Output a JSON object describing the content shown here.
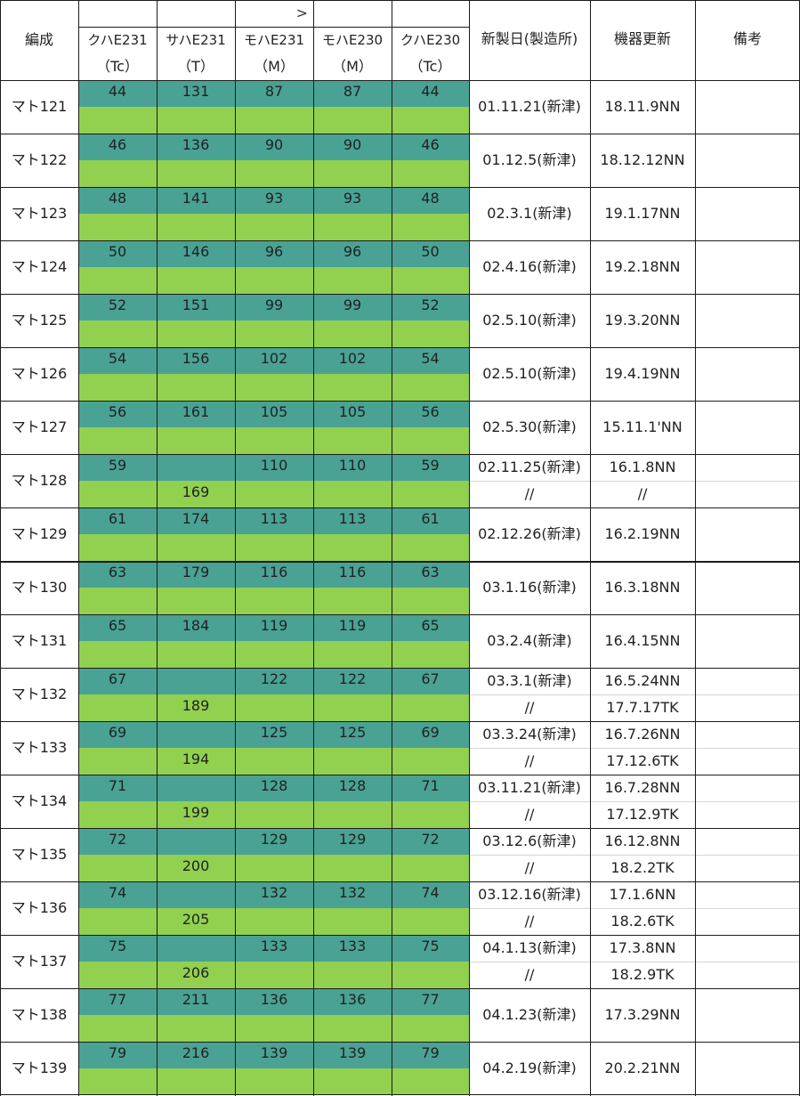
{
  "header": {
    "formation": "編成",
    "remarks": "備考",
    "arrow": ">",
    "build_date": "新製日(製造所)",
    "renewal": "機器更新",
    "cars": [
      {
        "name": "クハE231",
        "type": "（Tc）"
      },
      {
        "name": "サハE231",
        "type": "（T）"
      },
      {
        "name": "モハE231",
        "type": "（M）"
      },
      {
        "name": "モハE230",
        "type": "（M）"
      },
      {
        "name": "クハE230",
        "type": "（Tc）"
      }
    ]
  },
  "rows": [
    {
      "formation": "マト121",
      "cars": [
        "44",
        "131",
        "87",
        "87",
        "44"
      ],
      "build_date": "01.11.21(新津)",
      "renewal": "18.11.9NN"
    },
    {
      "formation": "マト122",
      "cars": [
        "46",
        "136",
        "90",
        "90",
        "46"
      ],
      "build_date": "01.12.5(新津)",
      "renewal": "18.12.12NN"
    },
    {
      "formation": "マト123",
      "cars": [
        "48",
        "141",
        "93",
        "93",
        "48"
      ],
      "build_date": "02.3.1(新津)",
      "renewal": "19.1.17NN"
    },
    {
      "formation": "マト124",
      "cars": [
        "50",
        "146",
        "96",
        "96",
        "50"
      ],
      "build_date": "02.4.16(新津)",
      "renewal": "19.2.18NN"
    },
    {
      "formation": "マト125",
      "cars": [
        "52",
        "151",
        "99",
        "99",
        "52"
      ],
      "build_date": "02.5.10(新津)",
      "renewal": "19.3.20NN"
    },
    {
      "formation": "マト126",
      "cars": [
        "54",
        "156",
        "102",
        "102",
        "54"
      ],
      "build_date": "02.5.10(新津)",
      "renewal": "19.4.19NN"
    },
    {
      "formation": "マト127",
      "cars": [
        "56",
        "161",
        "105",
        "105",
        "56"
      ],
      "build_date": "02.5.30(新津)",
      "renewal": "15.11.1'NN"
    },
    {
      "formation": "マト128",
      "cars": [
        "59",
        "",
        "110",
        "110",
        "59"
      ],
      "sub_car_2": "169",
      "build_date": "02.11.25(新津)",
      "renewal": "16.1.8NN",
      "sub_build": "//",
      "sub_renewal": "//"
    },
    {
      "formation": "マト129",
      "cars": [
        "61",
        "174",
        "113",
        "113",
        "61"
      ],
      "build_date": "02.12.26(新津)",
      "renewal": "16.2.19NN"
    },
    {
      "formation": "マト130",
      "cars": [
        "63",
        "179",
        "116",
        "116",
        "63"
      ],
      "build_date": "03.1.16(新津)",
      "renewal": "16.3.18NN"
    },
    {
      "formation": "マト131",
      "cars": [
        "65",
        "184",
        "119",
        "119",
        "65"
      ],
      "build_date": "03.2.4(新津)",
      "renewal": "16.4.15NN"
    },
    {
      "formation": "マト132",
      "cars": [
        "67",
        "",
        "122",
        "122",
        "67"
      ],
      "sub_car_2": "189",
      "build_date": "03.3.1(新津)",
      "renewal": "16.5.24NN",
      "sub_build": "//",
      "sub_renewal": "17.7.17TK"
    },
    {
      "formation": "マト133",
      "cars": [
        "69",
        "",
        "125",
        "125",
        "69"
      ],
      "sub_car_2": "194",
      "build_date": "03.3.24(新津)",
      "renewal": "16.7.26NN",
      "sub_build": "//",
      "sub_renewal": "17.12.6TK"
    },
    {
      "formation": "マト134",
      "cars": [
        "71",
        "",
        "128",
        "128",
        "71"
      ],
      "sub_car_2": "199",
      "build_date": "03.11.21(新津)",
      "renewal": "16.7.28NN",
      "sub_build": "//",
      "sub_renewal": "17.12.9TK"
    },
    {
      "formation": "マト135",
      "cars": [
        "72",
        "",
        "129",
        "129",
        "72"
      ],
      "sub_car_2": "200",
      "build_date": "03.12.6(新津)",
      "renewal": "16.12.8NN",
      "sub_build": "//",
      "sub_renewal": "18.2.2TK"
    },
    {
      "formation": "マト136",
      "cars": [
        "74",
        "",
        "132",
        "132",
        "74"
      ],
      "sub_car_2": "205",
      "build_date": "03.12.16(新津)",
      "renewal": "17.1.6NN",
      "sub_build": "//",
      "sub_renewal": "18.2.6TK"
    },
    {
      "formation": "マト137",
      "cars": [
        "75",
        "",
        "133",
        "133",
        "75"
      ],
      "sub_car_2": "206",
      "build_date": "04.1.13(新津)",
      "renewal": "17.3.8NN",
      "sub_build": "//",
      "sub_renewal": "18.2.9TK"
    },
    {
      "formation": "マト138",
      "cars": [
        "77",
        "211",
        "136",
        "136",
        "77"
      ],
      "build_date": "04.1.23(新津)",
      "renewal": "17.3.29NN"
    },
    {
      "formation": "マト139",
      "cars": [
        "79",
        "216",
        "139",
        "139",
        "79"
      ],
      "build_date": "04.2.19(新津)",
      "renewal": "20.2.21NN"
    }
  ],
  "colors": {
    "teal": "#4aa294",
    "lime": "#92d050",
    "grid": "#1c1c1c"
  }
}
